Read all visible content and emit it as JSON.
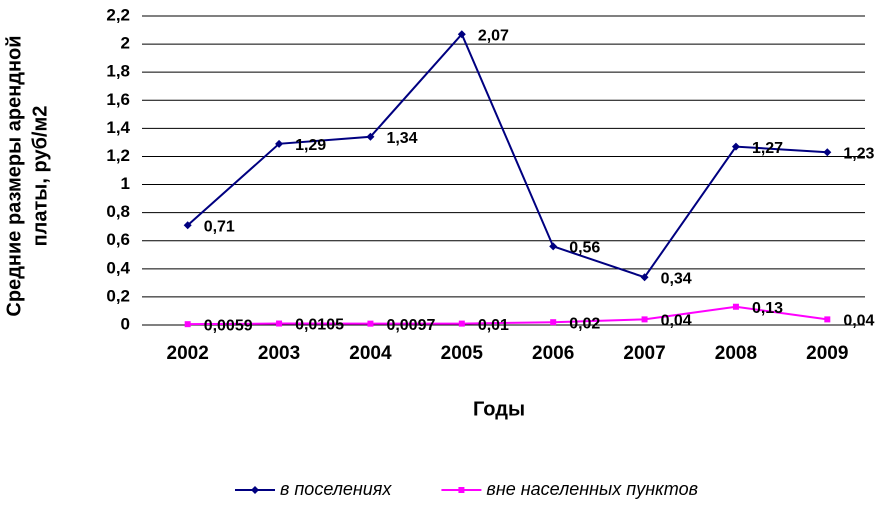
{
  "chart_data": {
    "type": "line",
    "y_label": [
      "Средние размеры арендной",
      "платы, руб/м2"
    ],
    "x_label": "Годы",
    "categories": [
      "2002",
      "2003",
      "2004",
      "2005",
      "2006",
      "2007",
      "2008",
      "2009"
    ],
    "series": [
      {
        "name": "в поселениях",
        "color": "#000080",
        "marker": "diamond",
        "values": [
          0.71,
          1.29,
          1.34,
          2.07,
          0.56,
          0.34,
          1.27,
          1.23
        ],
        "value_labels": [
          "0,71",
          "1,29",
          "1,34",
          "2,07",
          "0,56",
          "0,34",
          "1,27",
          "1,23"
        ]
      },
      {
        "name": "вне населенных пунктов",
        "color": "#ff00ff",
        "marker": "square",
        "values": [
          0.0059,
          0.0105,
          0.0097,
          0.01,
          0.02,
          0.04,
          0.13,
          0.04
        ],
        "value_labels": [
          "0,0059",
          "0,0105",
          "0,0097",
          "0,01",
          "0,02",
          "0,04",
          "0,13",
          "0,04"
        ]
      }
    ],
    "ylim": [
      0,
      2.2
    ],
    "yticks": [
      0,
      {
        "value": 0.2,
        "label": "0,2"
      },
      {
        "value": 0.4,
        "label": "0,4"
      },
      {
        "value": 0.6,
        "label": "0,6"
      },
      {
        "value": 0.8,
        "label": "0,8"
      },
      1,
      {
        "value": 1.2,
        "label": "1,2"
      },
      {
        "value": 1.4,
        "label": "1,4"
      },
      {
        "value": 1.6,
        "label": "1,6"
      },
      {
        "value": 1.8,
        "label": "1,8"
      },
      2,
      {
        "value": 2.2,
        "label": "2,2"
      }
    ],
    "grid": true,
    "legend": "bottom"
  }
}
